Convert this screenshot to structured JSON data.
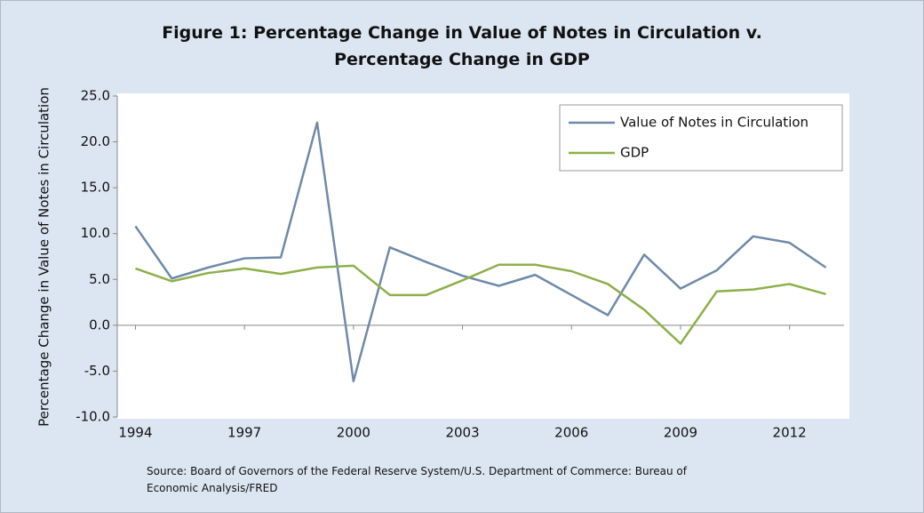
{
  "chart_data": {
    "type": "line",
    "title": "Figure 1: Percentage Change in Value of Notes in Circulation v. Percentage Change in GDP",
    "y_label": "Percentage Change in Value of Notes in Circulation",
    "annotation": "Source: Board of Governors of the Federal Reserve System/U.S. Department of Commerce: Bureau of Economic Analysis/FRED",
    "x": [
      1994,
      1995,
      1996,
      1997,
      1998,
      1999,
      2000,
      2001,
      2002,
      2003,
      2004,
      2005,
      2006,
      2007,
      2008,
      2009,
      2010,
      2011,
      2012,
      2013
    ],
    "xlim": [
      1993.5,
      2013.5
    ],
    "xticks": [
      1994,
      1997,
      2000,
      2003,
      2006,
      2009,
      2012
    ],
    "ylim": [
      -10,
      25
    ],
    "yticks": [
      {
        "value": -10,
        "label": "-10.0"
      },
      {
        "value": -5,
        "label": "-5.0"
      },
      {
        "value": 0,
        "label": "0.0"
      },
      {
        "value": 5,
        "label": "5.0"
      },
      {
        "value": 10,
        "label": "10.0"
      },
      {
        "value": 15,
        "label": "15.0"
      },
      {
        "value": 20,
        "label": "20.0"
      },
      {
        "value": 25,
        "label": "25.0"
      }
    ],
    "legend": "upper right",
    "series": [
      {
        "name": "Value of Notes in Circulation",
        "color": "#6f8aa8",
        "values": [
          10.8,
          5.1,
          6.3,
          7.3,
          7.4,
          22.1,
          -6.1,
          8.5,
          6.9,
          5.4,
          4.3,
          5.5,
          3.3,
          1.1,
          7.7,
          4.0,
          6.0,
          9.7,
          9.0,
          6.3
        ]
      },
      {
        "name": "GDP",
        "color": "#8db04a",
        "values": [
          6.2,
          4.8,
          5.7,
          6.2,
          5.6,
          6.3,
          6.5,
          3.3,
          3.3,
          4.9,
          6.6,
          6.6,
          5.9,
          4.5,
          1.7,
          -2.0,
          3.7,
          3.9,
          4.5,
          3.4
        ]
      }
    ]
  }
}
